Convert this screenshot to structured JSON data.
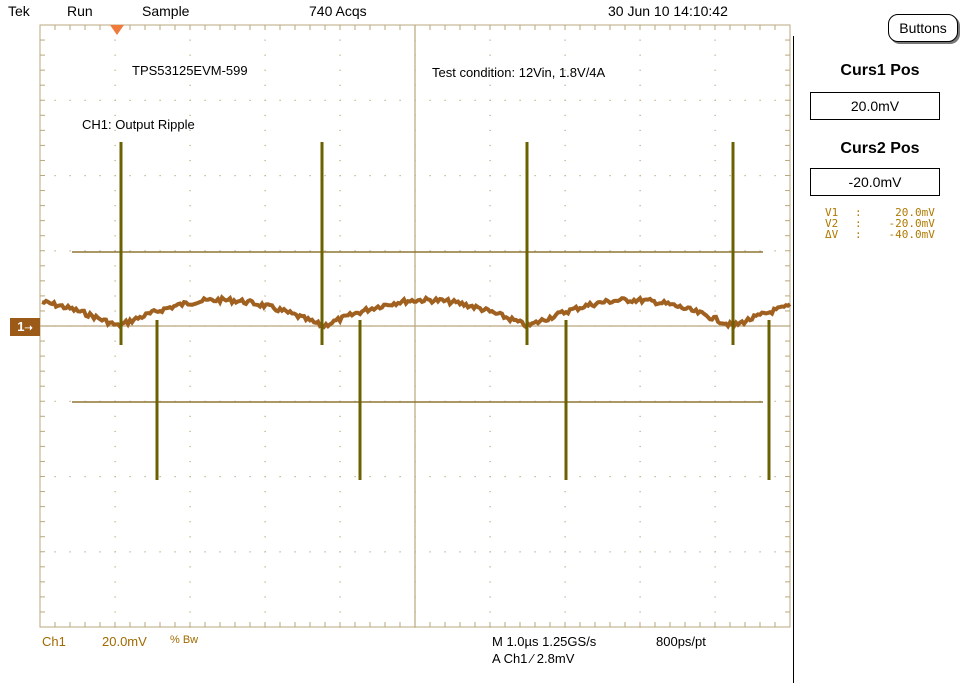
{
  "status_bar": {
    "brand": "Tek",
    "run_state": "Run",
    "acq_mode": "Sample",
    "acqs": "740 Acqs",
    "datetime": "30 Jun 10 14:10:42"
  },
  "buttons_label": "Buttons",
  "screen": {
    "title_left": "TPS53125EVM-599",
    "title_right": "Test condition: 12Vin, 1.8V/4A",
    "channel_label": "CH1: Output Ripple",
    "marker_label": "1"
  },
  "side_panel": {
    "curs1_label": "Curs1 Pos",
    "curs1_value": "20.0mV",
    "curs2_label": "Curs2 Pos",
    "curs2_value": "-20.0mV",
    "readout": [
      {
        "name": "V1",
        "value": "20.0mV"
      },
      {
        "name": "V2",
        "value": "-20.0mV"
      },
      {
        "name": "ΔV",
        "value": "-40.0mV"
      }
    ]
  },
  "bottom_left": {
    "ch": "Ch1",
    "scale": "20.0mV",
    "bw_icons": "% Bw"
  },
  "bottom_right": {
    "timebase": "M 1.0µs 1.25GS/s",
    "rate": "800ps/pt",
    "trigger": "A  Ch1  ⁄  2.8mV"
  },
  "colors": {
    "grid": "#b9a87d",
    "trace": "#a0601f",
    "spike": "#6b6100",
    "cursor": "#8f7635",
    "marker": "#9c5a18",
    "bottom_text": "#a06a00"
  }
}
